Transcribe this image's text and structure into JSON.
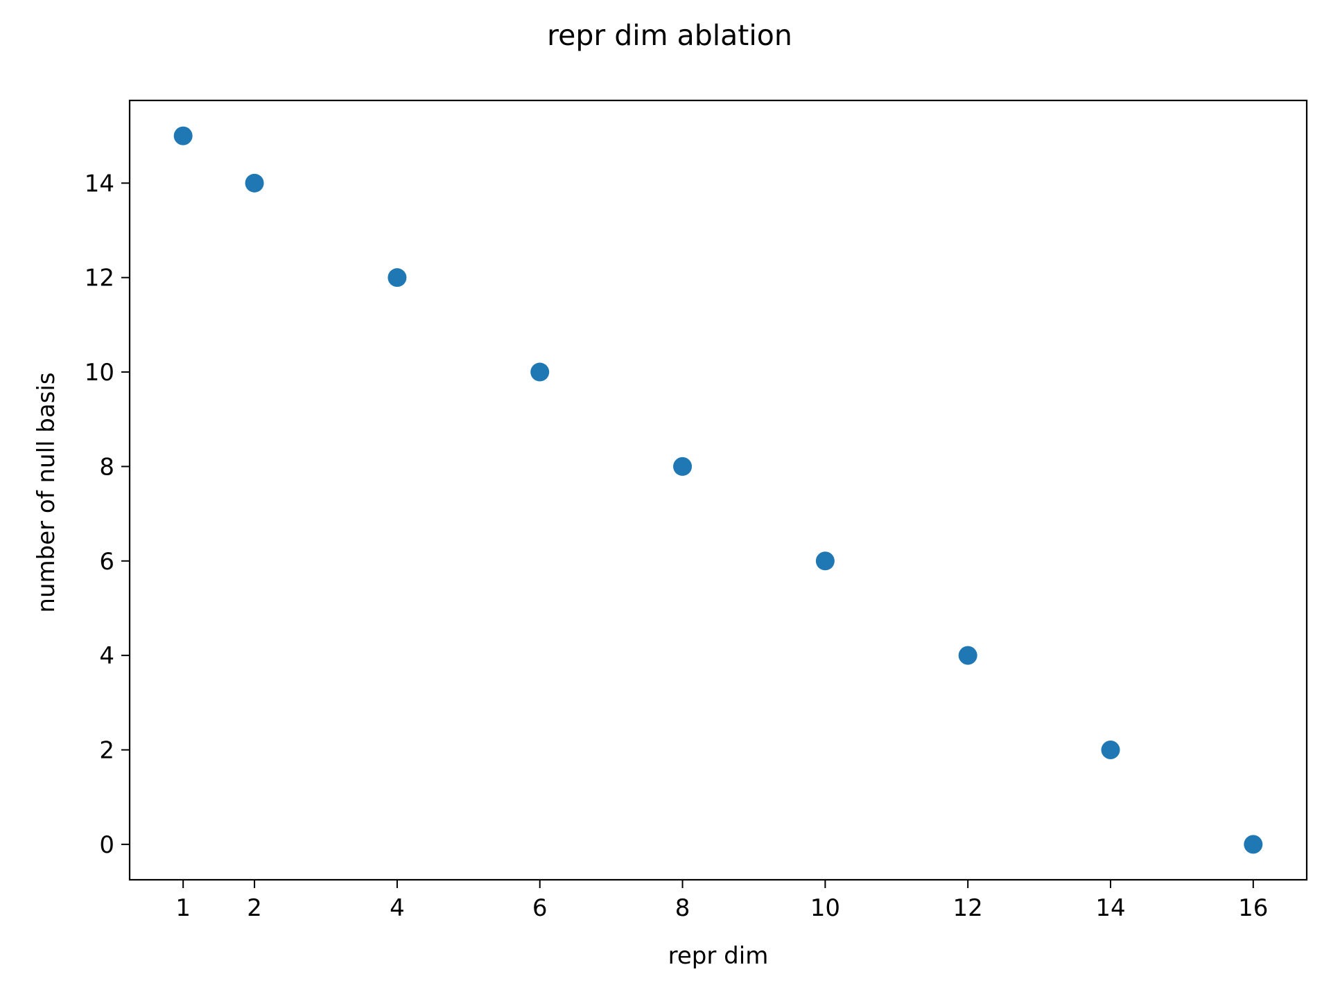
{
  "chart_data": {
    "type": "scatter",
    "title": "repr dim ablation",
    "xlabel": "repr dim",
    "ylabel": "number of null basis",
    "x": [
      1,
      2,
      4,
      6,
      8,
      10,
      12,
      14,
      16
    ],
    "y": [
      15,
      14,
      12,
      10,
      8,
      6,
      4,
      2,
      0
    ],
    "xticks": [
      1,
      2,
      4,
      6,
      8,
      10,
      12,
      14,
      16
    ],
    "yticks": [
      0,
      2,
      4,
      6,
      8,
      10,
      12,
      14
    ],
    "xlim": [
      0.25,
      16.75
    ],
    "ylim": [
      -0.75,
      15.75
    ],
    "grid": false,
    "marker_color": "#1f77b4"
  }
}
